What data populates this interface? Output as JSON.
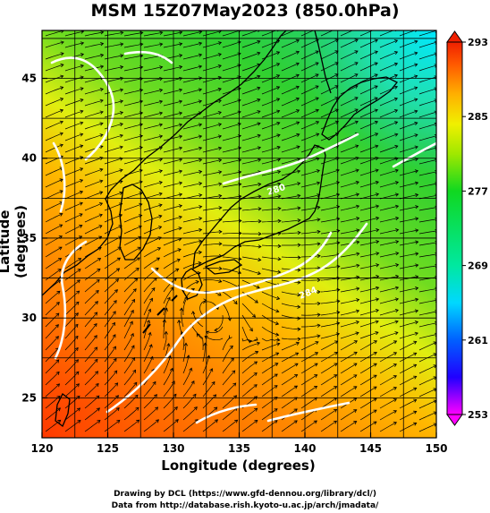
{
  "title": "MSM 15Z07May2023 (850.0hPa)",
  "x_axis": {
    "label": "Longitude (degrees)",
    "ticks": [
      "120",
      "125",
      "130",
      "135",
      "140",
      "145",
      "150"
    ]
  },
  "y_axis": {
    "label": "Latitude  (degrees)",
    "ticks": [
      "25",
      "30",
      "35",
      "40",
      "45"
    ]
  },
  "colorbar": {
    "min": 253,
    "max": 293,
    "ticks": [
      "253",
      "261",
      "269",
      "277",
      "285",
      "293"
    ],
    "colors": [
      "#ff00ff",
      "#2000ff",
      "#0060ff",
      "#00d8ff",
      "#00e8a0",
      "#10d820",
      "#a0e800",
      "#f0f000",
      "#ffb000",
      "#ff5a00",
      "#f02000"
    ]
  },
  "map": {
    "lon_range": [
      120,
      150
    ],
    "lat_range": [
      22.5,
      48
    ],
    "contour_labels": [
      "280",
      "284"
    ]
  },
  "credits": {
    "line1": "Drawing by DCL (https://www.gfd-dennou.org/library/dcl/)",
    "line2": "Data from http://database.rish.kyoto-u.ac.jp/arch/jmadata/"
  }
}
